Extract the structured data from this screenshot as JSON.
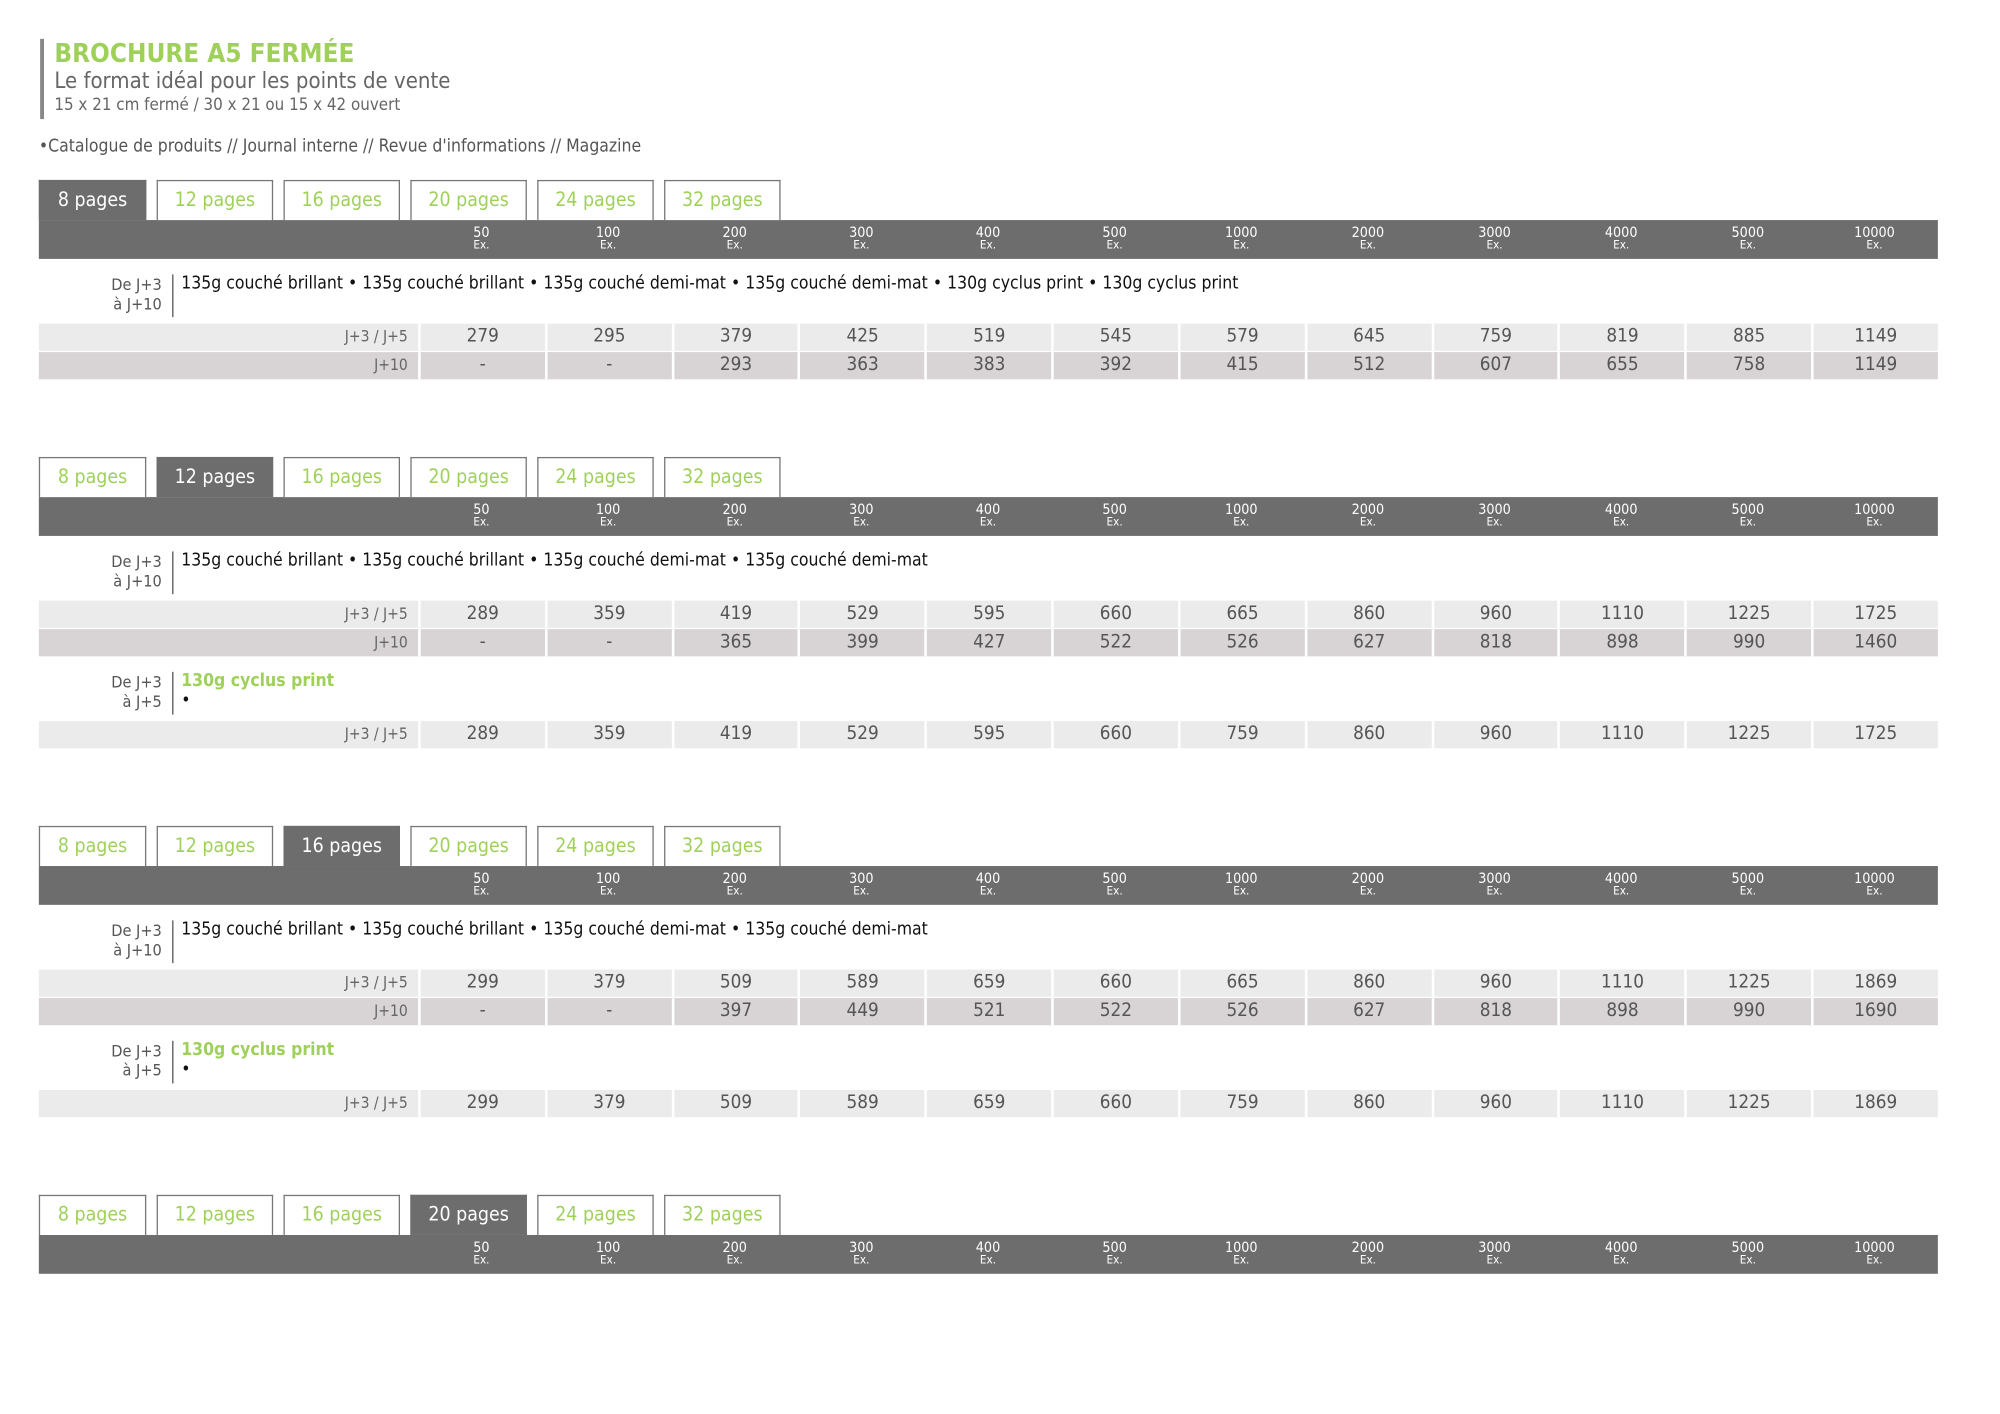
{
  "header": {
    "title": "BROCHURE A5 FERMÉE",
    "subtitle": "Le format idéal pour les points de vente",
    "dimensions": "15 x 21 cm fermé / 30 x 21 ou 15 x 42 ouvert",
    "uses": "•Catalogue de produits // Journal interne // Revue d'informations // Magazine"
  },
  "tabs": [
    "8 pages",
    "12 pages",
    "16 pages",
    "20 pages",
    "24 pages",
    "32 pages"
  ],
  "quantities": [
    "50",
    "100",
    "200",
    "300",
    "400",
    "500",
    "1000",
    "2000",
    "3000",
    "4000",
    "5000",
    "10000"
  ],
  "unit": "Ex.",
  "sections": [
    {
      "active": 0,
      "groups": [
        {
          "delay_from": "De J+3",
          "delay_to": "à J+10",
          "papers": "135g couché brillant • 135g couché brillant • 135g couché demi-mat • 135g couché demi-mat • 130g cyclus print • 130g cyclus print",
          "rows": [
            {
              "label": "J+3 / J+5",
              "values": [
                "279",
                "295",
                "379",
                "425",
                "519",
                "545",
                "579",
                "645",
                "759",
                "819",
                "885",
                "1149"
              ]
            },
            {
              "label": "J+10",
              "values": [
                "-",
                "-",
                "293",
                "363",
                "383",
                "392",
                "415",
                "512",
                "607",
                "655",
                "758",
                "1149"
              ]
            }
          ]
        }
      ]
    },
    {
      "active": 1,
      "groups": [
        {
          "delay_from": "De J+3",
          "delay_to": "à J+10",
          "papers": "135g couché brillant • 135g couché brillant • 135g couché demi-mat • 135g couché demi-mat",
          "rows": [
            {
              "label": "J+3 / J+5",
              "values": [
                "289",
                "359",
                "419",
                "529",
                "595",
                "660",
                "665",
                "860",
                "960",
                "1110",
                "1225",
                "1725"
              ]
            },
            {
              "label": "J+10",
              "values": [
                "-",
                "-",
                "365",
                "399",
                "427",
                "522",
                "526",
                "627",
                "818",
                "898",
                "990",
                "1460"
              ]
            }
          ]
        },
        {
          "delay_from": "De J+3",
          "delay_to": "à J+5",
          "highlight": "130g cyclus print",
          "papers": "•",
          "rows": [
            {
              "label": "J+3 / J+5",
              "values": [
                "289",
                "359",
                "419",
                "529",
                "595",
                "660",
                "759",
                "860",
                "960",
                "1110",
                "1225",
                "1725"
              ]
            }
          ]
        }
      ]
    },
    {
      "active": 2,
      "groups": [
        {
          "delay_from": "De J+3",
          "delay_to": "à J+10",
          "papers": "135g couché brillant • 135g couché brillant • 135g couché demi-mat • 135g couché demi-mat",
          "rows": [
            {
              "label": "J+3 / J+5",
              "values": [
                "299",
                "379",
                "509",
                "589",
                "659",
                "660",
                "665",
                "860",
                "960",
                "1110",
                "1225",
                "1869"
              ]
            },
            {
              "label": "J+10",
              "values": [
                "-",
                "-",
                "397",
                "449",
                "521",
                "522",
                "526",
                "627",
                "818",
                "898",
                "990",
                "1690"
              ]
            }
          ]
        },
        {
          "delay_from": "De J+3",
          "delay_to": "à J+5",
          "highlight": "130g cyclus print",
          "papers": "•",
          "rows": [
            {
              "label": "J+3 / J+5",
              "values": [
                "299",
                "379",
                "509",
                "589",
                "659",
                "660",
                "759",
                "860",
                "960",
                "1110",
                "1225",
                "1869"
              ]
            }
          ]
        }
      ]
    },
    {
      "active": 3,
      "groups": []
    }
  ]
}
